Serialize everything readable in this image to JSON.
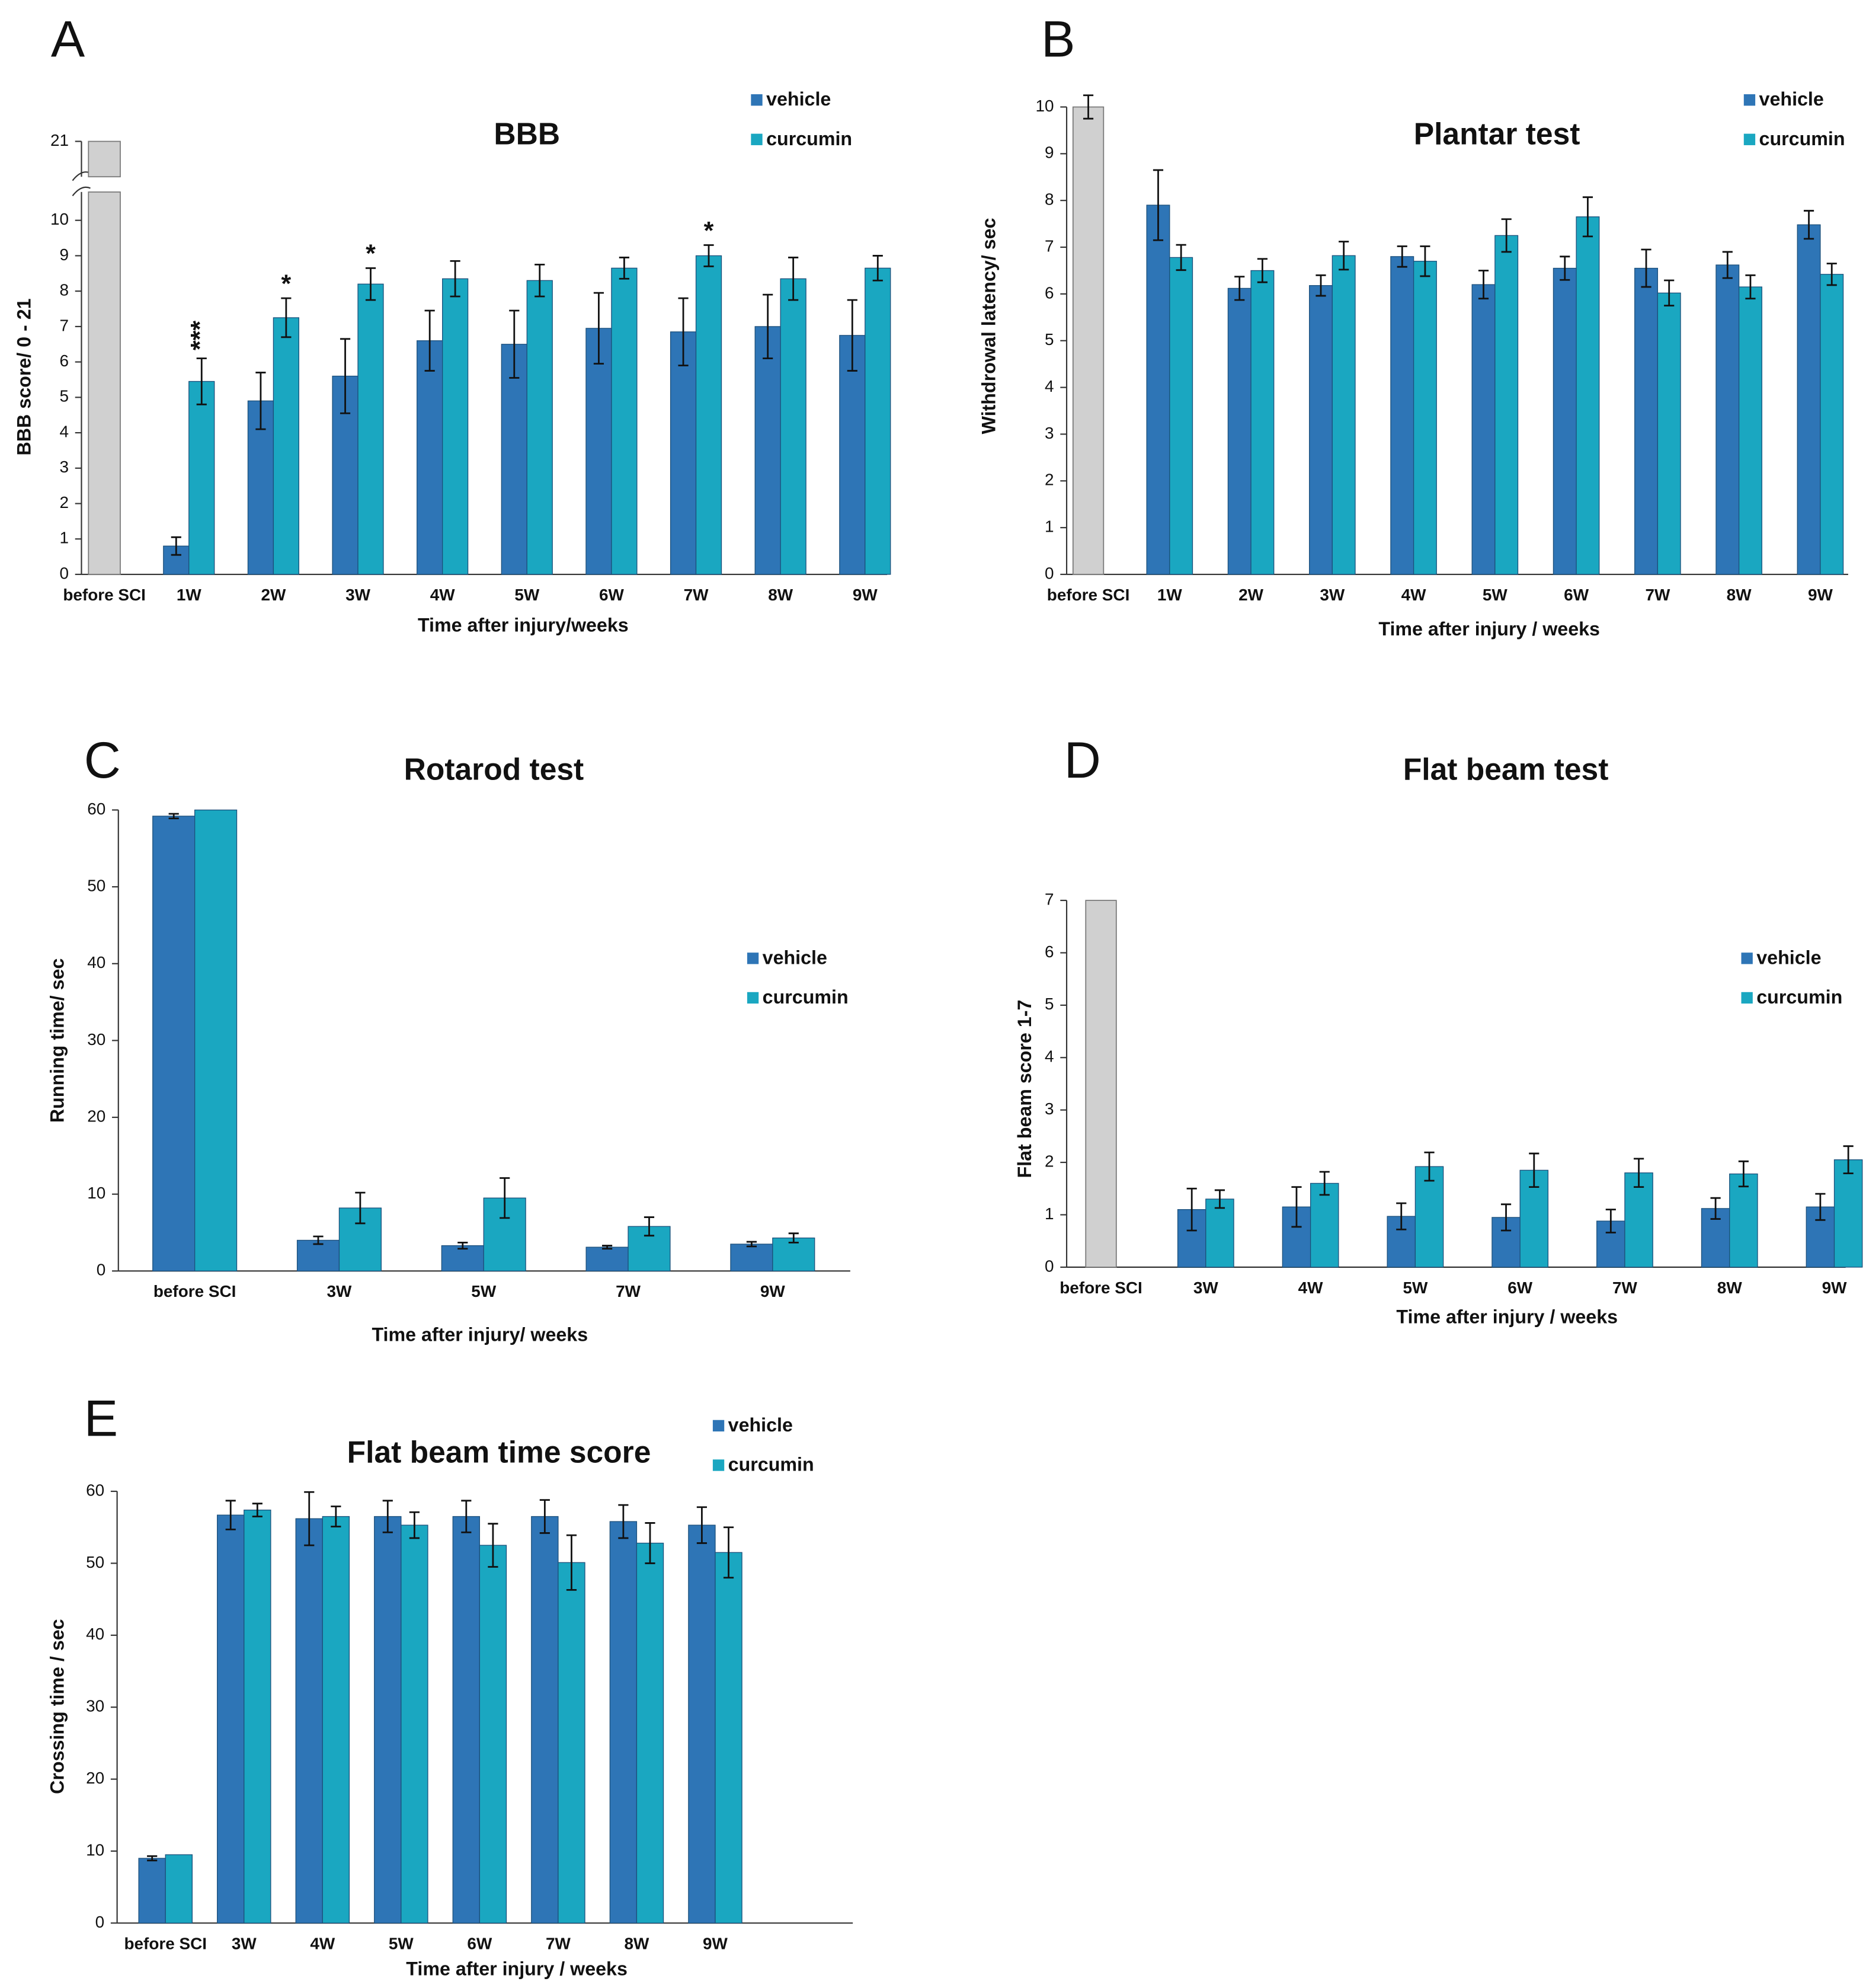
{
  "chart_data": [
    {
      "type": "bar",
      "panel": "A",
      "title": "BBB",
      "x_label": "Time after injury/weeks",
      "y_label": "BBB score/ 0 - 21",
      "categories": [
        "before SCI",
        "1W",
        "2W",
        "3W",
        "4W",
        "5W",
        "6W",
        "7W",
        "8W",
        "9W"
      ],
      "reference": {
        "value": 21,
        "error": null,
        "color": "#d0d0d0"
      },
      "series": [
        {
          "name": "vehicle",
          "color": "#2e75b6",
          "values": [
            null,
            0.8,
            4.9,
            5.6,
            6.6,
            6.5,
            6.95,
            6.85,
            7.0,
            6.75
          ],
          "errors": [
            null,
            0.25,
            0.8,
            1.05,
            0.85,
            0.95,
            1.0,
            0.95,
            0.9,
            1.0
          ]
        },
        {
          "name": "curcumin",
          "color": "#1aa7c1",
          "values": [
            null,
            5.45,
            7.25,
            8.2,
            8.35,
            8.3,
            8.65,
            9.0,
            8.35,
            8.65
          ],
          "errors": [
            null,
            0.65,
            0.55,
            0.45,
            0.5,
            0.45,
            0.3,
            0.3,
            0.6,
            0.35
          ],
          "annotations": [
            null,
            "***",
            "*",
            "*",
            null,
            null,
            null,
            "*",
            null,
            null
          ]
        }
      ],
      "ylim": [
        0,
        21
      ],
      "ybreak": [
        10.8,
        20
      ],
      "yticks": [
        0,
        1,
        2,
        3,
        4,
        5,
        6,
        7,
        8,
        9,
        10,
        21
      ]
    },
    {
      "type": "bar",
      "panel": "B",
      "title": "Plantar test",
      "x_label": "Time after injury / weeks",
      "y_label": "Withdrowal latency/ sec",
      "categories": [
        "before SCI",
        "1W",
        "2W",
        "3W",
        "4W",
        "5W",
        "6W",
        "7W",
        "8W",
        "9W"
      ],
      "reference": {
        "value": 10,
        "error": 0.25,
        "color": "#d0d0d0"
      },
      "series": [
        {
          "name": "vehicle",
          "color": "#2e75b6",
          "values": [
            null,
            7.9,
            6.12,
            6.18,
            6.8,
            6.2,
            6.55,
            6.55,
            6.62,
            7.48
          ],
          "errors": [
            null,
            0.75,
            0.25,
            0.22,
            0.22,
            0.3,
            0.25,
            0.4,
            0.28,
            0.3
          ]
        },
        {
          "name": "curcumin",
          "color": "#1aa7c1",
          "values": [
            null,
            6.78,
            6.5,
            6.82,
            6.7,
            7.25,
            7.65,
            6.02,
            6.15,
            6.42
          ],
          "errors": [
            null,
            0.27,
            0.25,
            0.3,
            0.32,
            0.35,
            0.42,
            0.27,
            0.25,
            0.23
          ]
        }
      ],
      "ylim": [
        0,
        10
      ],
      "yticks": [
        0,
        1,
        2,
        3,
        4,
        5,
        6,
        7,
        8,
        9,
        10
      ]
    },
    {
      "type": "bar",
      "panel": "C",
      "title": "Rotarod test",
      "x_label": "Time after injury/ weeks",
      "y_label": "Running time/ sec",
      "categories": [
        "before SCI",
        "3W",
        "5W",
        "7W",
        "9W"
      ],
      "series": [
        {
          "name": "vehicle",
          "color": "#2e75b6",
          "values": [
            59.2,
            4.0,
            3.3,
            3.1,
            3.5
          ],
          "errors": [
            0.3,
            0.5,
            0.4,
            0.2,
            0.3
          ]
        },
        {
          "name": "curcumin",
          "color": "#1aa7c1",
          "values": [
            60,
            8.2,
            9.5,
            5.8,
            4.3
          ],
          "errors": [
            null,
            2.0,
            2.6,
            1.2,
            0.6
          ]
        }
      ],
      "ylim": [
        0,
        60
      ],
      "yticks": [
        0,
        10,
        20,
        30,
        40,
        50,
        60
      ]
    },
    {
      "type": "bar",
      "panel": "D",
      "title": "Flat beam test",
      "x_label": "Time after injury / weeks",
      "y_label": "Flat beam score 1-7",
      "categories": [
        "before SCI",
        "3W",
        "4W",
        "5W",
        "6W",
        "7W",
        "8W",
        "9W"
      ],
      "reference": {
        "value": 7,
        "error": null,
        "color": "#d0d0d0"
      },
      "series": [
        {
          "name": "vehicle",
          "color": "#2e75b6",
          "values": [
            null,
            1.1,
            1.15,
            0.97,
            0.95,
            0.88,
            1.12,
            1.15
          ],
          "errors": [
            null,
            0.4,
            0.38,
            0.25,
            0.25,
            0.22,
            0.2,
            0.25
          ]
        },
        {
          "name": "curcumin",
          "color": "#1aa7c1",
          "values": [
            null,
            1.3,
            1.6,
            1.92,
            1.85,
            1.8,
            1.78,
            2.05
          ],
          "errors": [
            null,
            0.17,
            0.22,
            0.27,
            0.32,
            0.27,
            0.24,
            0.26
          ]
        }
      ],
      "ylim": [
        0,
        7
      ],
      "yticks": [
        0,
        1,
        2,
        3,
        4,
        5,
        6,
        7
      ]
    },
    {
      "type": "bar",
      "panel": "E",
      "title": "Flat beam time score",
      "x_label": "Time after injury / weeks",
      "y_label": "Crossing time / sec",
      "categories": [
        "before SCI",
        "3W",
        "4W",
        "5W",
        "6W",
        "7W",
        "8W",
        "9W"
      ],
      "series": [
        {
          "name": "vehicle",
          "color": "#2e75b6",
          "values": [
            9.0,
            56.7,
            56.2,
            56.5,
            56.5,
            56.5,
            55.8,
            55.3
          ],
          "errors": [
            0.3,
            2.0,
            3.7,
            2.2,
            2.2,
            2.3,
            2.3,
            2.5
          ]
        },
        {
          "name": "curcumin",
          "color": "#1aa7c1",
          "values": [
            9.5,
            57.4,
            56.5,
            55.3,
            52.5,
            50.1,
            52.8,
            51.5
          ],
          "errors": [
            null,
            0.9,
            1.4,
            1.8,
            3.0,
            3.8,
            2.8,
            3.5
          ]
        }
      ],
      "ylim": [
        0,
        60
      ],
      "yticks": [
        0,
        10,
        20,
        30,
        40,
        50,
        60
      ]
    }
  ]
}
